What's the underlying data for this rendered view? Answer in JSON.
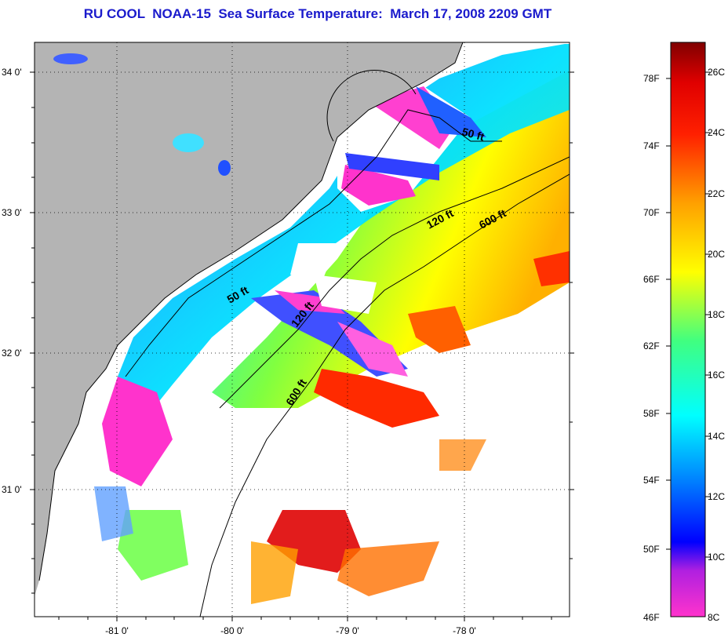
{
  "title": "RU COOL  NOAA-15  Sea Surface Temperature:  March 17, 2008 2209 GMT",
  "lat_ticks": [
    "34 0'",
    "33 0'",
    "32 0'",
    "31 0'"
  ],
  "lon_ticks": [
    "-81 0'",
    "-80 0'",
    "-79 0'",
    "-78 0'"
  ],
  "contours": [
    {
      "label": "50 ft"
    },
    {
      "label": "120 ft"
    },
    {
      "label": "600 ft"
    },
    {
      "label": "50 ft"
    },
    {
      "label": "120 ft"
    },
    {
      "label": "600 ft"
    }
  ],
  "colorbar": {
    "fahrenheit": [
      "78F",
      "74F",
      "70F",
      "66F",
      "62F",
      "58F",
      "54F",
      "50F",
      "46F"
    ],
    "celsius": [
      "26C",
      "24C",
      "22C",
      "20C",
      "18C",
      "16C",
      "14C",
      "12C",
      "10C",
      "8C"
    ]
  },
  "colors": {
    "land": "#b4b4b4",
    "title": "#1a1acc"
  }
}
